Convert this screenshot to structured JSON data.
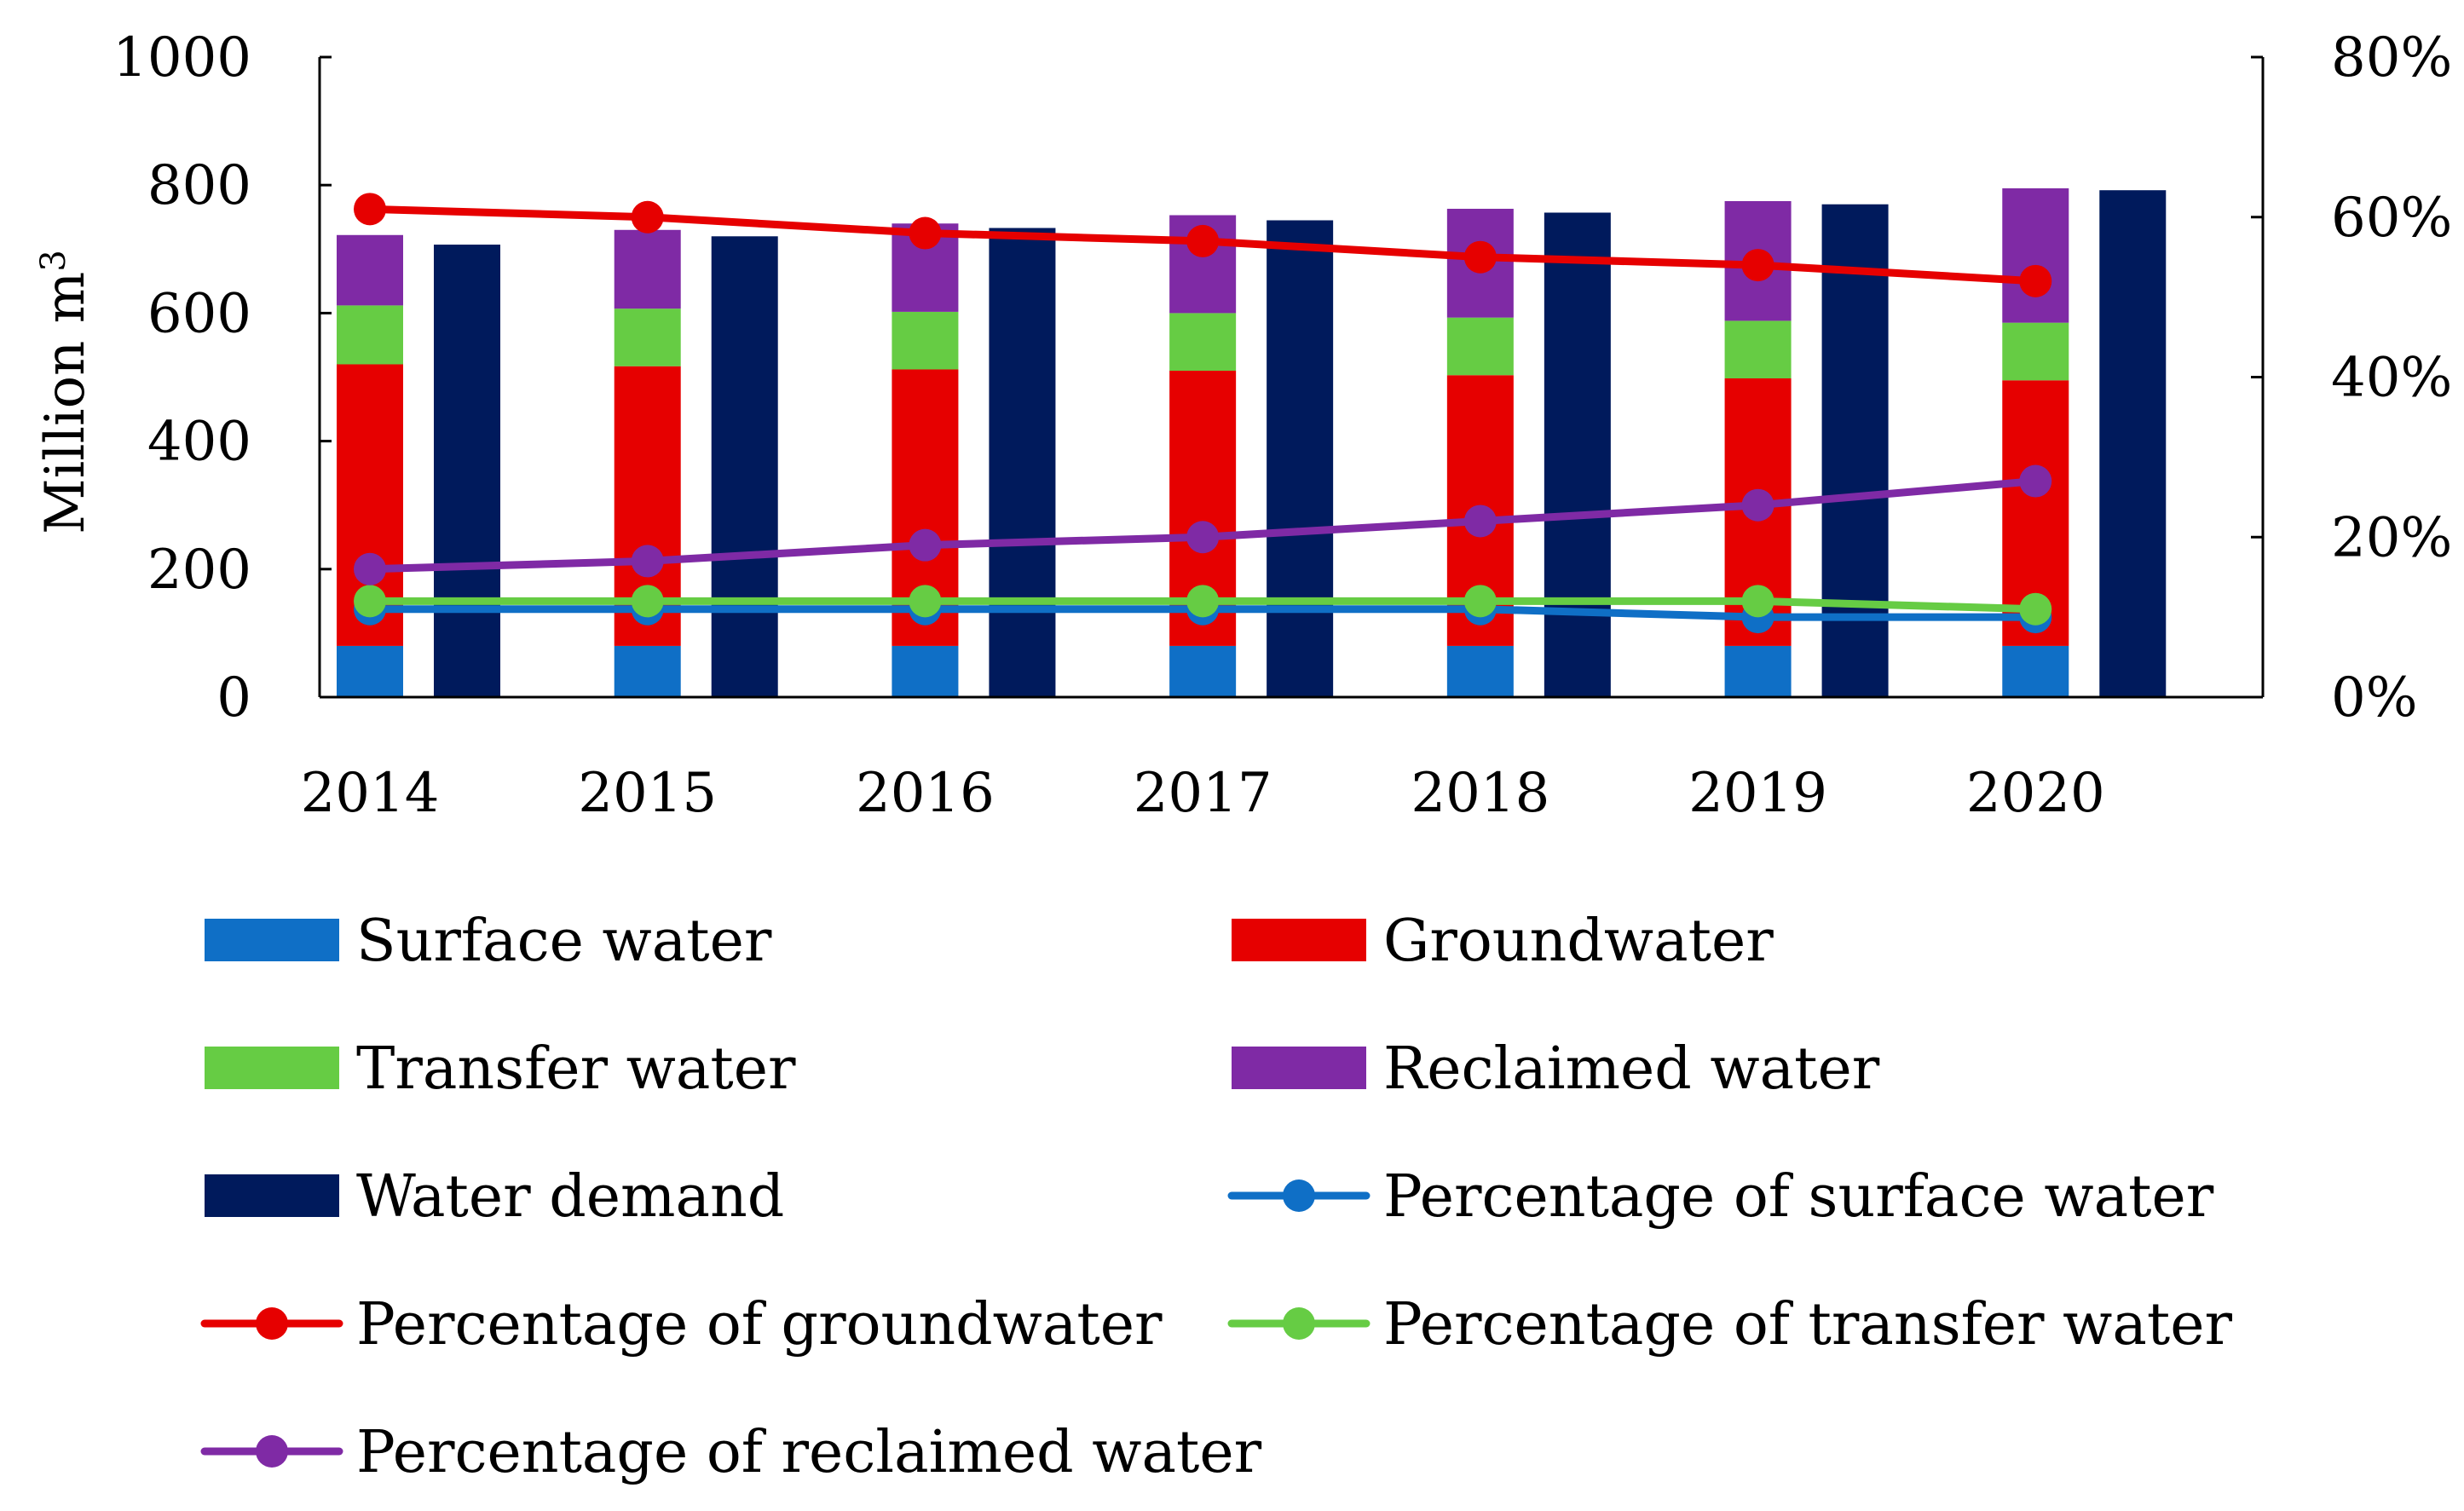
{
  "chart_data": {
    "type": "bar",
    "categories": [
      "2014",
      "2015",
      "2016",
      "2017",
      "2018",
      "2019",
      "2020"
    ],
    "ylabel": "Million m",
    "ylabel_superscript": "3",
    "ylim": [
      0,
      1000
    ],
    "y_ticks": [
      "0",
      "200",
      "400",
      "600",
      "800",
      "1000"
    ],
    "y2lim": [
      0,
      0.8
    ],
    "y2_ticks": [
      "0%",
      "20%",
      "40%",
      "60%",
      "80%"
    ],
    "stacked_series": [
      {
        "name": "Surface water",
        "color": "#0f6fc6",
        "values": [
          80,
          80,
          80,
          80,
          80,
          80,
          80
        ]
      },
      {
        "name": "Groundwater",
        "color": "#e60000",
        "values": [
          440,
          437,
          432,
          430,
          423,
          418,
          415
        ]
      },
      {
        "name": "Transfer water",
        "color": "#66cc44",
        "values": [
          92,
          90,
          90,
          90,
          90,
          90,
          90
        ]
      },
      {
        "name": "Reclaimed water",
        "color": "#7f2aa5",
        "values": [
          110,
          123,
          138,
          153,
          170,
          187,
          210
        ]
      }
    ],
    "demand_series": {
      "name": "Water demand",
      "color": "#001a5c",
      "values": [
        707,
        720,
        733,
        745,
        757,
        770,
        792
      ]
    },
    "line_series": [
      {
        "name": "Percentage of surface water",
        "color": "#0f6fc6",
        "values": [
          0.11,
          0.11,
          0.11,
          0.11,
          0.11,
          0.1,
          0.1
        ]
      },
      {
        "name": "Percentage of groundwater",
        "color": "#e60000",
        "values": [
          0.61,
          0.6,
          0.58,
          0.57,
          0.55,
          0.54,
          0.52
        ]
      },
      {
        "name": "Percentage of transfer water",
        "color": "#66cc44",
        "values": [
          0.12,
          0.12,
          0.12,
          0.12,
          0.12,
          0.12,
          0.11
        ]
      },
      {
        "name": "Percentage of reclaimed water",
        "color": "#7f2aa5",
        "values": [
          0.16,
          0.17,
          0.19,
          0.2,
          0.22,
          0.24,
          0.27
        ]
      }
    ],
    "legend": [
      {
        "label": "Surface water",
        "kind": "box",
        "color": "#0f6fc6"
      },
      {
        "label": "Groundwater",
        "kind": "box",
        "color": "#e60000"
      },
      {
        "label": "Transfer water",
        "kind": "box",
        "color": "#66cc44"
      },
      {
        "label": "Reclaimed water",
        "kind": "box",
        "color": "#7f2aa5"
      },
      {
        "label": "Water demand",
        "kind": "box",
        "color": "#001a5c"
      },
      {
        "label": "Percentage of surface water",
        "kind": "line",
        "color": "#0f6fc6"
      },
      {
        "label": "Percentage of groundwater",
        "kind": "line",
        "color": "#e60000"
      },
      {
        "label": "Percentage of transfer water",
        "kind": "line",
        "color": "#66cc44"
      },
      {
        "label": "Percentage of reclaimed water",
        "kind": "line",
        "color": "#7f2aa5"
      }
    ],
    "legend_position": "bottom"
  }
}
